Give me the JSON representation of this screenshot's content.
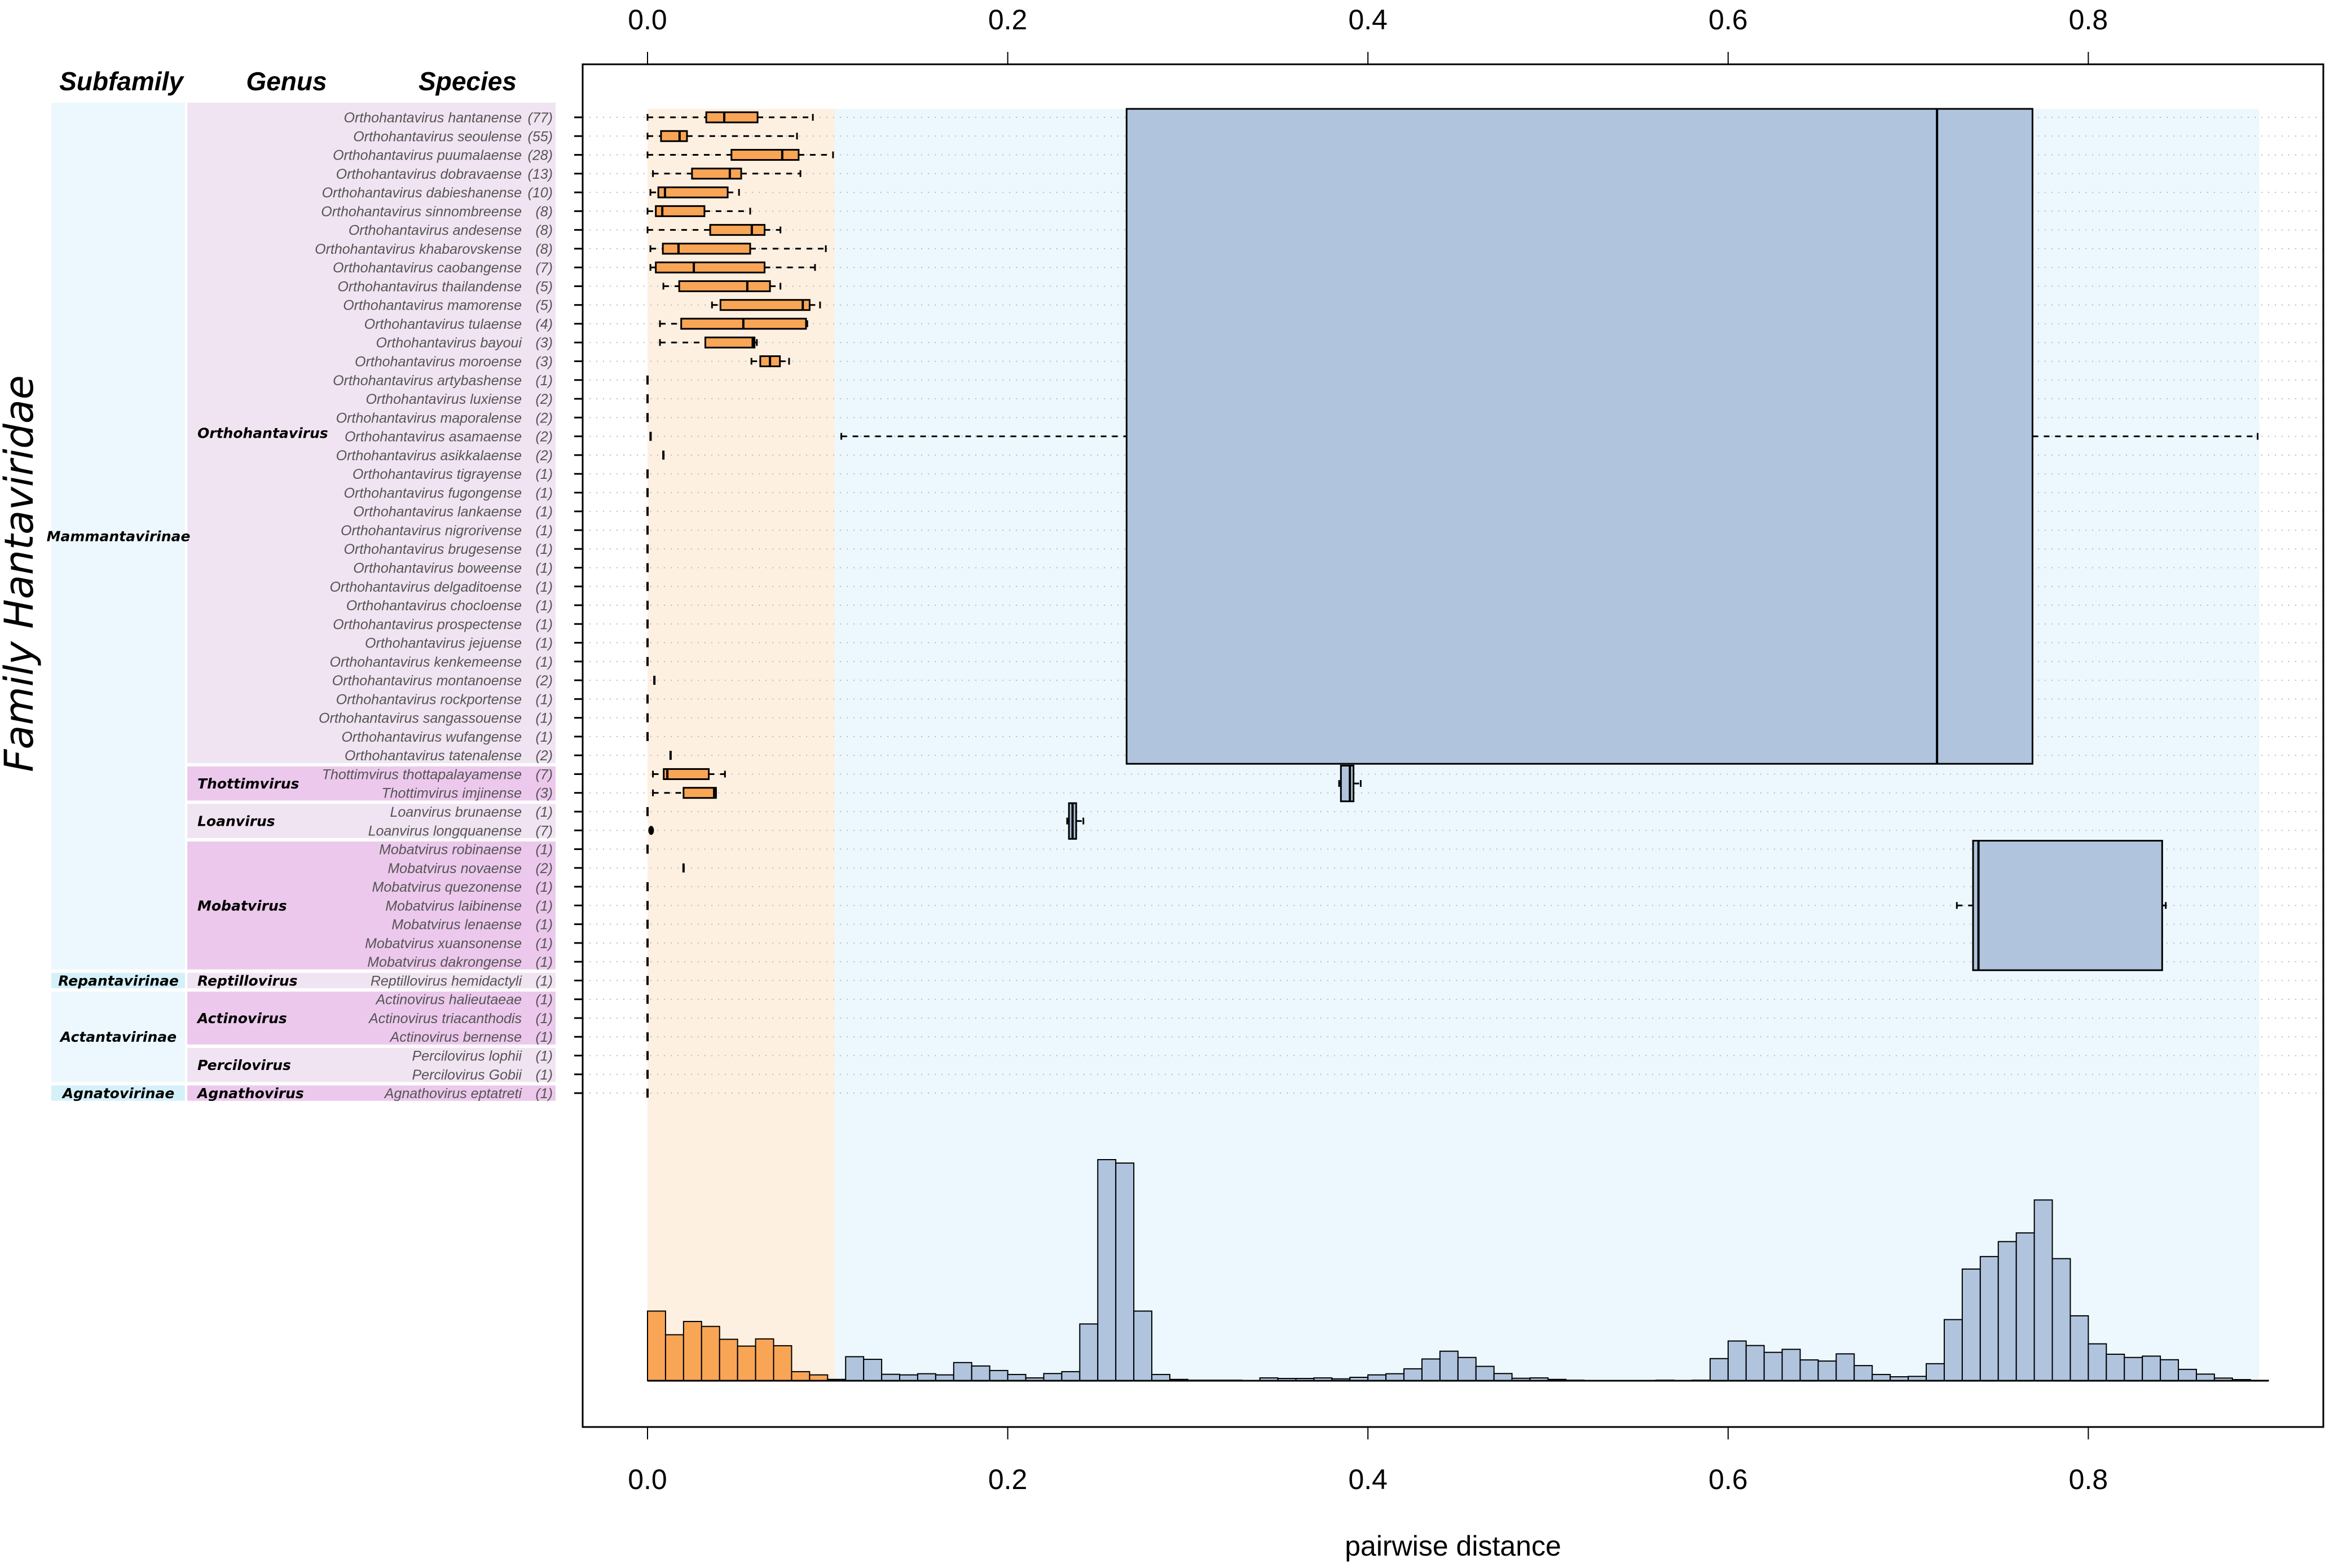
{
  "figure": {
    "family_label": "Family Hantaviridae",
    "headers": {
      "subfamily": "Subfamily",
      "genus": "Genus",
      "species": "Species"
    },
    "colors": {
      "within_fill": "#f8a556",
      "between_fill": "#b0c4de",
      "within_region": "#fdf0e1",
      "between_region": "#ecf8fd",
      "subfamily_bg": "#ecf8fd",
      "subfamily_bg_alt": "#d4f1f9",
      "genus_bg_light": "#f1e4f2",
      "genus_bg_dark": "#ecc9ec"
    }
  },
  "chart_data": {
    "type": "boxplot+histogram",
    "title": "",
    "xlabel": "pairwise distance",
    "ylabel": "Family Hantaviridae",
    "xlim": [
      -0.035,
      0.93
    ],
    "xticks": [
      0.0,
      0.2,
      0.4,
      0.6,
      0.8
    ],
    "xtick_labels": [
      "0.0",
      "0.2",
      "0.4",
      "0.6",
      "0.8"
    ],
    "grid": "dotted horizontal per species row",
    "shaded_regions": [
      {
        "name": "within-genus",
        "from": 0.0,
        "to": 0.104
      },
      {
        "name": "between-genus",
        "from": 0.104,
        "to": 0.895
      }
    ],
    "subfamilies": [
      {
        "name": "Mammantavirinae",
        "alt": false,
        "genera": [
          "Orthohantavirus",
          "Thottimvirus",
          "Loanvirus",
          "Mobatvirus"
        ]
      },
      {
        "name": "Repantavirinae",
        "alt": true,
        "genera": [
          "Reptillovirus"
        ]
      },
      {
        "name": "Actantavirinae",
        "alt": false,
        "genera": [
          "Actinovirus",
          "Percilovirus"
        ]
      },
      {
        "name": "Agnatovirinae",
        "alt": true,
        "genera": [
          "Agnathovirus"
        ]
      }
    ],
    "genera": [
      {
        "name": "Orthohantavirus",
        "shade": "light",
        "between": {
          "wl": 0.1076,
          "q1": 0.266,
          "med": 0.716,
          "q3": 0.769,
          "wr": 0.894
        }
      },
      {
        "name": "Thottimvirus",
        "shade": "dark",
        "between": {
          "wl": 0.384,
          "q1": 0.385,
          "med": 0.39,
          "q3": 0.392,
          "wr": 0.396
        }
      },
      {
        "name": "Loanvirus",
        "shade": "light",
        "between": {
          "wl": 0.233,
          "q1": 0.234,
          "med": 0.236,
          "q3": 0.238,
          "wr": 0.242
        }
      },
      {
        "name": "Mobatvirus",
        "shade": "dark",
        "between": {
          "wl": 0.727,
          "q1": 0.736,
          "med": 0.739,
          "q3": 0.841,
          "wr": 0.843
        }
      },
      {
        "name": "Reptillovirus",
        "shade": "light",
        "between": null
      },
      {
        "name": "Actinovirus",
        "shade": "dark",
        "between": null
      },
      {
        "name": "Percilovirus",
        "shade": "light",
        "between": null
      },
      {
        "name": "Agnathovirus",
        "shade": "dark",
        "between": null
      }
    ],
    "species": [
      {
        "genus": "Orthohantavirus",
        "name": "Orthohantavirus hantanense",
        "n": "(77)",
        "box": {
          "wl": 0.0,
          "q1": 0.0326,
          "med": 0.0426,
          "q3": 0.0611,
          "wr": 0.0918
        }
      },
      {
        "genus": "Orthohantavirus",
        "name": "Orthohantavirus seoulense",
        "n": "(55)",
        "box": {
          "wl": 0.0,
          "q1": 0.0075,
          "med": 0.0178,
          "q3": 0.0219,
          "wr": 0.083
        }
      },
      {
        "genus": "Orthohantavirus",
        "name": "Orthohantavirus puumalaense",
        "n": "(28)",
        "box": {
          "wl": 0.0,
          "q1": 0.0466,
          "med": 0.0748,
          "q3": 0.0839,
          "wr": 0.103
        }
      },
      {
        "genus": "Orthohantavirus",
        "name": "Orthohantavirus dobravaense",
        "n": "(13)",
        "box": {
          "wl": 0.003,
          "q1": 0.0247,
          "med": 0.0457,
          "q3": 0.052,
          "wr": 0.0849
        }
      },
      {
        "genus": "Orthohantavirus",
        "name": "Orthohantavirus dabieshanense",
        "n": "(10)",
        "box": {
          "wl": 0.0016,
          "q1": 0.006,
          "med": 0.0097,
          "q3": 0.0445,
          "wr": 0.0508
        }
      },
      {
        "genus": "Orthohantavirus",
        "name": "Orthohantavirus sinnombreense",
        "n": "(8)",
        "box": {
          "wl": 0.0,
          "q1": 0.0046,
          "med": 0.0082,
          "q3": 0.0316,
          "wr": 0.057
        }
      },
      {
        "genus": "Orthohantavirus",
        "name": "Orthohantavirus andesense",
        "n": "(8)",
        "box": {
          "wl": 0.0,
          "q1": 0.0348,
          "med": 0.0579,
          "q3": 0.065,
          "wr": 0.0738
        }
      },
      {
        "genus": "Orthohantavirus",
        "name": "Orthohantavirus khabarovskense",
        "n": "(8)",
        "box": {
          "wl": 0.0016,
          "q1": 0.0085,
          "med": 0.0172,
          "q3": 0.057,
          "wr": 0.099
        }
      },
      {
        "genus": "Orthohantavirus",
        "name": "Orthohantavirus caobangense",
        "n": "(7)",
        "box": {
          "wl": 0.0016,
          "q1": 0.0046,
          "med": 0.0257,
          "q3": 0.065,
          "wr": 0.093
        }
      },
      {
        "genus": "Orthohantavirus",
        "name": "Orthohantavirus thailandense",
        "n": "(5)",
        "box": {
          "wl": 0.0088,
          "q1": 0.0176,
          "med": 0.0554,
          "q3": 0.068,
          "wr": 0.0738
        }
      },
      {
        "genus": "Orthohantavirus",
        "name": "Orthohantavirus mamorense",
        "n": "(5)",
        "box": {
          "wl": 0.0358,
          "q1": 0.0405,
          "med": 0.0862,
          "q3": 0.09,
          "wr": 0.0958
        }
      },
      {
        "genus": "Orthohantavirus",
        "name": "Orthohantavirus tulaense",
        "n": "(4)",
        "box": {
          "wl": 0.0069,
          "q1": 0.0187,
          "med": 0.0532,
          "q3": 0.088,
          "wr": 0.0887
        }
      },
      {
        "genus": "Orthohantavirus",
        "name": "Orthohantavirus bayoui",
        "n": "(3)",
        "box": {
          "wl": 0.0069,
          "q1": 0.0321,
          "med": 0.0584,
          "q3": 0.0594,
          "wr": 0.0607
        }
      },
      {
        "genus": "Orthohantavirus",
        "name": "Orthohantavirus moroense",
        "n": "(3)",
        "box": {
          "wl": 0.0577,
          "q1": 0.0626,
          "med": 0.068,
          "q3": 0.0735,
          "wr": 0.0786
        }
      },
      {
        "genus": "Orthohantavirus",
        "name": "Orthohantavirus artybashense",
        "n": "(1)",
        "value": 0.0
      },
      {
        "genus": "Orthohantavirus",
        "name": "Orthohantavirus luxiense",
        "n": "(2)",
        "value": 0.0
      },
      {
        "genus": "Orthohantavirus",
        "name": "Orthohantavirus maporalense",
        "n": "(2)",
        "value": 0.0
      },
      {
        "genus": "Orthohantavirus",
        "name": "Orthohantavirus asamaense",
        "n": "(2)",
        "value": 0.0017
      },
      {
        "genus": "Orthohantavirus",
        "name": "Orthohantavirus asikkalaense",
        "n": "(2)",
        "value": 0.0088
      },
      {
        "genus": "Orthohantavirus",
        "name": "Orthohantavirus tigrayense",
        "n": "(1)",
        "value": 0.0
      },
      {
        "genus": "Orthohantavirus",
        "name": "Orthohantavirus fugongense",
        "n": "(1)",
        "value": 0.0
      },
      {
        "genus": "Orthohantavirus",
        "name": "Orthohantavirus lankaense",
        "n": "(1)",
        "value": 0.0
      },
      {
        "genus": "Orthohantavirus",
        "name": "Orthohantavirus nigrorivense",
        "n": "(1)",
        "value": 0.0
      },
      {
        "genus": "Orthohantavirus",
        "name": "Orthohantavirus brugesense",
        "n": "(1)",
        "value": 0.0
      },
      {
        "genus": "Orthohantavirus",
        "name": "Orthohantavirus boweense",
        "n": "(1)",
        "value": 0.0
      },
      {
        "genus": "Orthohantavirus",
        "name": "Orthohantavirus delgaditoense",
        "n": "(1)",
        "value": 0.0
      },
      {
        "genus": "Orthohantavirus",
        "name": "Orthohantavirus chocloense",
        "n": "(1)",
        "value": 0.0
      },
      {
        "genus": "Orthohantavirus",
        "name": "Orthohantavirus prospectense",
        "n": "(1)",
        "value": 0.0
      },
      {
        "genus": "Orthohantavirus",
        "name": "Orthohantavirus jejuense",
        "n": "(1)",
        "value": 0.0
      },
      {
        "genus": "Orthohantavirus",
        "name": "Orthohantavirus kenkemeense",
        "n": "(1)",
        "value": 0.0
      },
      {
        "genus": "Orthohantavirus",
        "name": "Orthohantavirus montanoense",
        "n": "(2)",
        "value": 0.0038
      },
      {
        "genus": "Orthohantavirus",
        "name": "Orthohantavirus rockportense",
        "n": "(1)",
        "value": 0.0
      },
      {
        "genus": "Orthohantavirus",
        "name": "Orthohantavirus sangassouense",
        "n": "(1)",
        "value": 0.0
      },
      {
        "genus": "Orthohantavirus",
        "name": "Orthohantavirus wufangense",
        "n": "(1)",
        "value": 0.0
      },
      {
        "genus": "Orthohantavirus",
        "name": "Orthohantavirus tatenalense",
        "n": "(2)",
        "value": 0.0128
      },
      {
        "genus": "Thottimvirus",
        "name": "Thottimvirus thottapalayamense",
        "n": "(7)",
        "box": {
          "wl": 0.003,
          "q1": 0.009,
          "med": 0.011,
          "q3": 0.034,
          "wr": 0.043
        }
      },
      {
        "genus": "Thottimvirus",
        "name": "Thottimvirus imjinense",
        "n": "(3)",
        "box": {
          "wl": 0.003,
          "q1": 0.02,
          "med": 0.037,
          "q3": 0.038,
          "wr": 0.038
        }
      },
      {
        "genus": "Loanvirus",
        "name": "Loanvirus brunaense",
        "n": "(1)",
        "value": 0.0
      },
      {
        "genus": "Loanvirus",
        "name": "Loanvirus longquanense",
        "n": "(7)",
        "point": 0.002
      },
      {
        "genus": "Mobatvirus",
        "name": "Mobatvirus robinaense",
        "n": "(1)",
        "value": 0.0
      },
      {
        "genus": "Mobatvirus",
        "name": "Mobatvirus novaense",
        "n": "(2)",
        "value": 0.02
      },
      {
        "genus": "Mobatvirus",
        "name": "Mobatvirus quezonense",
        "n": "(1)",
        "value": 0.0
      },
      {
        "genus": "Mobatvirus",
        "name": "Mobatvirus laibinense",
        "n": "(1)",
        "value": 0.0
      },
      {
        "genus": "Mobatvirus",
        "name": "Mobatvirus lenaense",
        "n": "(1)",
        "value": 0.0
      },
      {
        "genus": "Mobatvirus",
        "name": "Mobatvirus xuansonense",
        "n": "(1)",
        "value": 0.0
      },
      {
        "genus": "Mobatvirus",
        "name": "Mobatvirus dakrongense",
        "n": "(1)",
        "value": 0.0
      },
      {
        "genus": "Reptillovirus",
        "name": "Reptillovirus hemidactyli",
        "n": "(1)",
        "value": 0.0
      },
      {
        "genus": "Actinovirus",
        "name": "Actinovirus halieutaeae",
        "n": "(1)",
        "value": 0.0
      },
      {
        "genus": "Actinovirus",
        "name": "Actinovirus triacanthodis",
        "n": "(1)",
        "value": 0.0
      },
      {
        "genus": "Actinovirus",
        "name": "Actinovirus bernense",
        "n": "(1)",
        "value": 0.0
      },
      {
        "genus": "Percilovirus",
        "name": "Percilovirus lophii",
        "n": "(1)",
        "value": 0.0
      },
      {
        "genus": "Percilovirus",
        "name": "Percilovirus Gobii",
        "n": "(1)",
        "value": 0.0
      },
      {
        "genus": "Agnathovirus",
        "name": "Agnathovirus eptatreti",
        "n": "(1)",
        "value": 0.0
      }
    ],
    "histogram": {
      "bin_width": 0.01,
      "bin_start": 0.0,
      "within_until": 0.1,
      "units": "relative frequency (no y axis shown)",
      "values": [
        368,
        243,
        313,
        287,
        219,
        183,
        221,
        185,
        48,
        31,
        7,
        127,
        113,
        34,
        31,
        37,
        31,
        96,
        78,
        54,
        33,
        15,
        38,
        48,
        300,
        1168,
        1150,
        368,
        33,
        7,
        3,
        3,
        3,
        0,
        15,
        12,
        12,
        15,
        10,
        18,
        31,
        37,
        63,
        115,
        156,
        123,
        76,
        38,
        13,
        15,
        7,
        3,
        0,
        0,
        0,
        0,
        3,
        0,
        3,
        117,
        210,
        186,
        150,
        166,
        110,
        104,
        142,
        80,
        33,
        21,
        23,
        90,
        323,
        590,
        656,
        735,
        781,
        955,
        645,
        343,
        195,
        140,
        123,
        130,
        111,
        60,
        35,
        14,
        6,
        2
      ]
    }
  }
}
